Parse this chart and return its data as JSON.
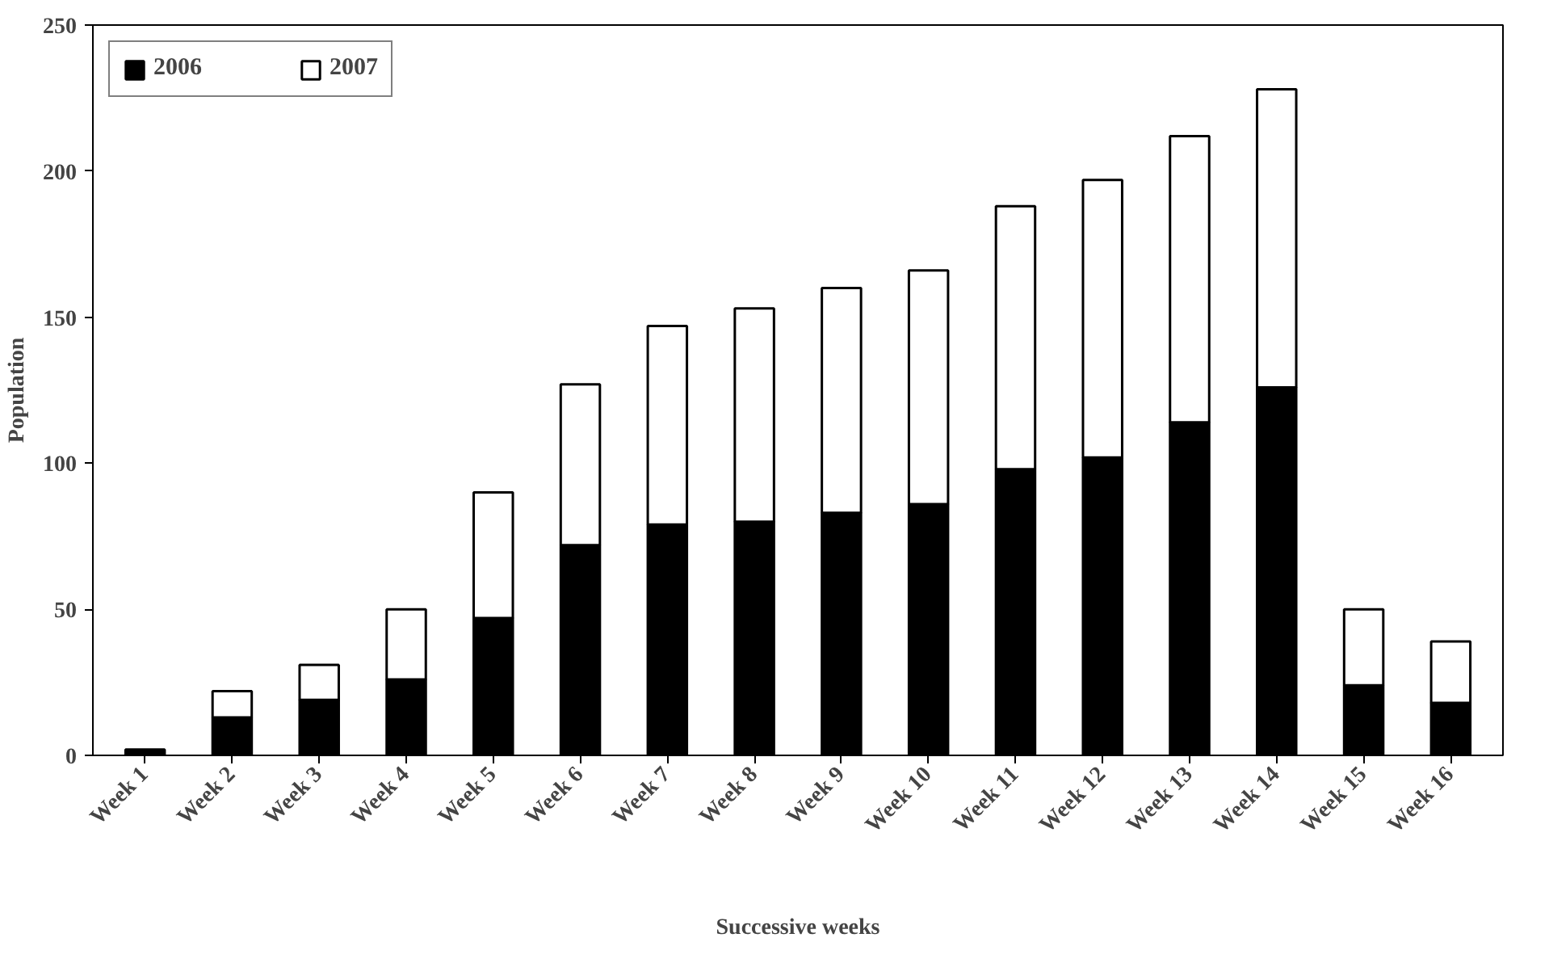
{
  "chart_data": {
    "type": "bar",
    "stacked": true,
    "xlabel": "Successive weeks",
    "ylabel": "Population",
    "categories": [
      "Week 1",
      "Week 2",
      "Week 3",
      "Week 4",
      "Week 5",
      "Week 6",
      "Week 7",
      "Week 8",
      "Week 9",
      "Week 10",
      "Week 11",
      "Week 12",
      "Week 13",
      "Week 14",
      "Week 15",
      "Week 16"
    ],
    "series": [
      {
        "name": "2006",
        "color": "#000000",
        "values": [
          2,
          13,
          19,
          26,
          47,
          72,
          79,
          80,
          83,
          86,
          98,
          102,
          114,
          126,
          24,
          18
        ]
      },
      {
        "name": "2007",
        "color": "#ffffff",
        "values": [
          null,
          9,
          12,
          24,
          43,
          55,
          68,
          73,
          77,
          80,
          90,
          95,
          98,
          102,
          26,
          21
        ]
      }
    ],
    "ylim": [
      0,
      250
    ],
    "yticks": [
      0,
      50,
      100,
      150,
      200,
      250
    ],
    "grid": false,
    "legend": "top left"
  }
}
